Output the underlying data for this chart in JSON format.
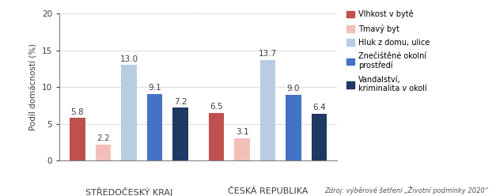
{
  "groups": [
    "STŘEDOČESKÝ KRAJ",
    "ČESKÁ REPUBLIKA"
  ],
  "values": [
    [
      5.8,
      2.2,
      13.0,
      9.1,
      7.2
    ],
    [
      6.5,
      3.1,
      13.7,
      9.0,
      6.4
    ]
  ],
  "colors": [
    "#c0504d",
    "#f2c0b8",
    "#b8cce4",
    "#4472c4",
    "#1f3864"
  ],
  "legend_labels": [
    "Vlhkost v bytě",
    "Tmavý byt",
    "Hluk z domu, ulice",
    "Znečištěné okolní\nprostředí",
    "Vandalství,\nkriminalita v okolí"
  ],
  "ylabel": "Podíl domácností (%)",
  "ylim": [
    0,
    20
  ],
  "yticks": [
    0,
    5,
    10,
    15,
    20
  ],
  "source_text": "Zdroj: výběrové šetření „Životní podmínky 2020“",
  "label_fontsize": 7.5,
  "bar_width": 0.6,
  "group_label_fontsize": 8
}
